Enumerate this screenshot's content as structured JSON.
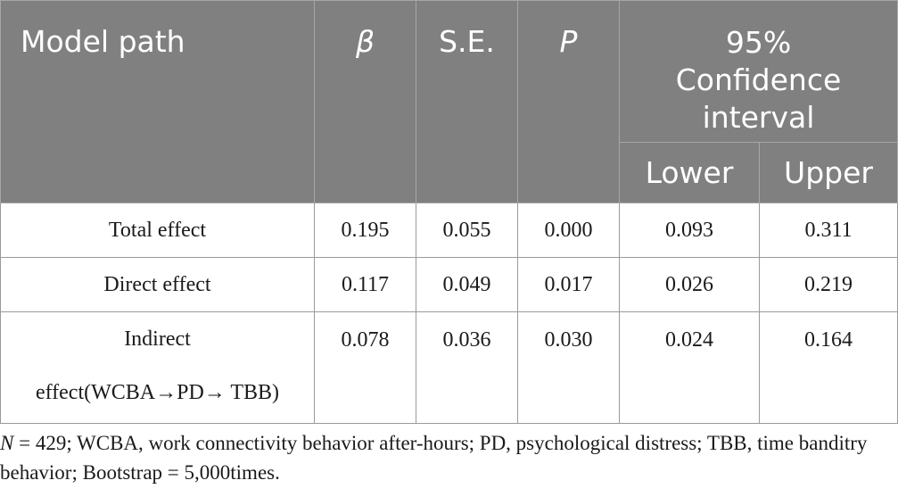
{
  "table": {
    "headers": {
      "model_path": "Model path",
      "beta": "β",
      "se": "S.E.",
      "p": "P",
      "ci_line1": "95%",
      "ci_line2": "Confidence",
      "ci_line3": "interval",
      "lower": "Lower",
      "upper": "Upper"
    },
    "rows": [
      {
        "label": "Total effect",
        "beta": "0.195",
        "se": "0.055",
        "p": "0.000",
        "lower": "0.093",
        "upper": "0.311"
      },
      {
        "label": "Direct effect",
        "beta": "0.117",
        "se": "0.049",
        "p": "0.017",
        "lower": "0.026",
        "upper": "0.219"
      },
      {
        "label_line1": "Indirect",
        "label_line2": "effect(WCBA→PD→ TBB)",
        "beta": "0.078",
        "se": "0.036",
        "p": "0.030",
        "lower": "0.024",
        "upper": "0.164"
      }
    ]
  },
  "note": {
    "n_symbol": "N",
    "text": " = 429; WCBA, work connectivity behavior after-hours; PD, psychological distress; TBB, time banditry behavior; Bootstrap = 5,000times."
  },
  "colors": {
    "header_bg": "#808080",
    "header_text": "#ffffff",
    "border": "#9a9a9a"
  }
}
